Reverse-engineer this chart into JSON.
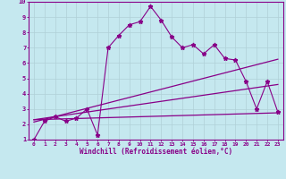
{
  "title": "",
  "xlabel": "Windchill (Refroidissement éolien,°C)",
  "ylabel": "",
  "xlim": [
    -0.5,
    23.5
  ],
  "ylim": [
    1,
    10
  ],
  "xticks": [
    0,
    1,
    2,
    3,
    4,
    5,
    6,
    7,
    8,
    9,
    10,
    11,
    12,
    13,
    14,
    15,
    16,
    17,
    18,
    19,
    20,
    21,
    22,
    23
  ],
  "yticks": [
    1,
    2,
    3,
    4,
    5,
    6,
    7,
    8,
    9,
    10
  ],
  "bg_color": "#c5e8ef",
  "line_color": "#880088",
  "grid_color": "#aacccc",
  "line1_x": [
    0,
    1,
    2,
    3,
    4,
    5,
    6,
    7,
    8,
    9,
    10,
    11,
    12,
    13,
    14,
    15,
    16,
    17,
    18,
    19,
    20,
    21,
    22,
    23
  ],
  "line1_y": [
    1.0,
    2.2,
    2.5,
    2.2,
    2.4,
    3.0,
    1.3,
    7.0,
    7.8,
    8.5,
    8.7,
    9.7,
    8.8,
    7.7,
    7.0,
    7.2,
    6.6,
    7.2,
    6.3,
    6.2,
    4.8,
    3.0,
    4.8,
    2.8
  ],
  "line2_x": [
    0,
    23
  ],
  "line2_y": [
    2.15,
    6.25
  ],
  "line3_x": [
    0,
    23
  ],
  "line3_y": [
    2.3,
    4.6
  ],
  "line4_x": [
    0,
    23
  ],
  "line4_y": [
    2.3,
    2.75
  ],
  "markersize": 3.5
}
